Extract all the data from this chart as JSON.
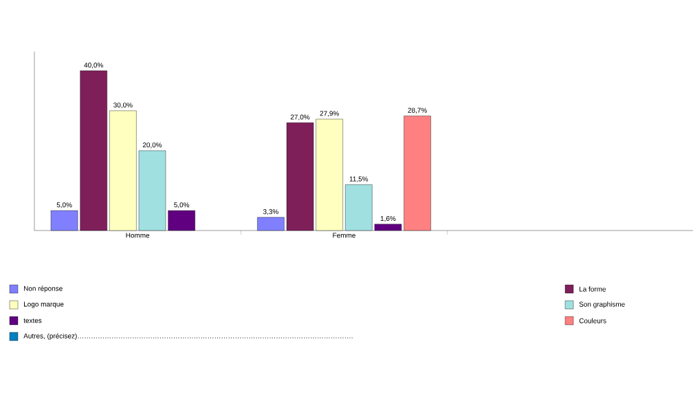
{
  "chart_data": {
    "type": "bar",
    "categories": [
      "Homme",
      "Femme"
    ],
    "legend": "bottom",
    "series": [
      {
        "name": "Non réponse",
        "color": "#8080ff",
        "values": [
          5.0,
          3.3
        ],
        "value_labels": [
          "5,0%",
          "3,3%"
        ]
      },
      {
        "name": "La forme",
        "color": "#7f1f5a",
        "values": [
          40.0,
          27.0
        ],
        "value_labels": [
          "40,0%",
          "27,0%"
        ]
      },
      {
        "name": "Logo  marque",
        "color": "#ffffc0",
        "values": [
          30.0,
          27.9
        ],
        "value_labels": [
          "30,0%",
          "27,9%"
        ]
      },
      {
        "name": "Son graphisme",
        "color": "#a0e0e0",
        "values": [
          20.0,
          11.5
        ],
        "value_labels": [
          "20,0%",
          "11,5%"
        ]
      },
      {
        "name": "textes",
        "color": "#600080",
        "values": [
          5.0,
          1.6
        ],
        "value_labels": [
          "5,0%",
          "1,6%"
        ]
      },
      {
        "name": "Couleurs",
        "color": "#ff8080",
        "values": [
          null,
          28.7
        ],
        "value_labels": [
          null,
          "28,7%"
        ]
      },
      {
        "name": "Autres, (précisez)………………………………………………………………………………………………………….",
        "color": "#0080c0",
        "values": [
          null,
          null
        ]
      }
    ]
  }
}
